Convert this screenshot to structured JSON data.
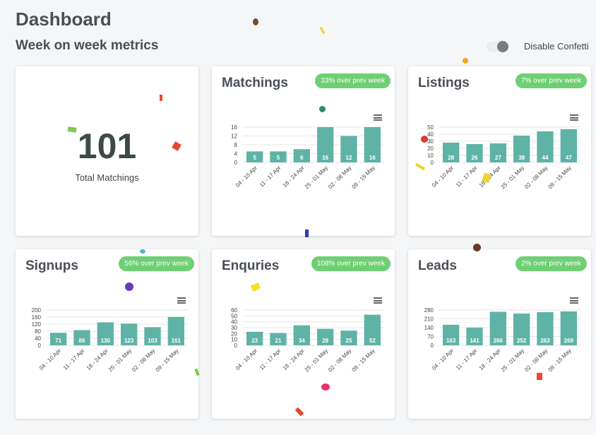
{
  "header": {
    "title": "Dashboard",
    "subtitle": "Week on week metrics"
  },
  "confetti_toggle": {
    "label": "Disable Confetti",
    "enabled": false
  },
  "summary": {
    "value": "101",
    "label": "Total Matchings"
  },
  "colors": {
    "bar": "#5fb3a6",
    "badge": "#6fcf73",
    "grid": "#e6e6e6"
  },
  "chart_data": [
    {
      "type": "bar",
      "title": "Matchings",
      "badge": "33% over prev week",
      "categories": [
        "04 - 10 Apr",
        "11 - 17 Apr",
        "18 - 24 Apr",
        "25 - 01 May",
        "02 - 08 May",
        "09 - 15 May"
      ],
      "values": [
        5,
        5,
        6,
        16,
        12,
        16
      ],
      "yticks": [
        0,
        4,
        8,
        12,
        16
      ],
      "ylim": [
        0,
        16
      ]
    },
    {
      "type": "bar",
      "title": "Listings",
      "badge": "7% over prev week",
      "categories": [
        "04 - 10 Apr",
        "11 - 17 Apr",
        "18 - 24 Apr",
        "25 - 01 May",
        "02 - 08 May",
        "09 - 15 May"
      ],
      "values": [
        28,
        26,
        27,
        38,
        44,
        47
      ],
      "yticks": [
        0,
        10,
        20,
        30,
        40,
        50
      ],
      "ylim": [
        0,
        50
      ]
    },
    {
      "type": "bar",
      "title": "Signups",
      "badge": "56% over prev week",
      "categories": [
        "04 - 10 Apr",
        "11 - 17 Apr",
        "18 - 24 Apr",
        "25 - 01 May",
        "02 - 08 May",
        "09 - 15 May"
      ],
      "values": [
        71,
        86,
        130,
        123,
        103,
        161
      ],
      "yticks": [
        0,
        40,
        80,
        120,
        160,
        200
      ],
      "ylim": [
        0,
        200
      ]
    },
    {
      "type": "bar",
      "title": "Enquries",
      "badge": "108% over prev week",
      "categories": [
        "04 - 10 Apr",
        "11 - 17 Apr",
        "18 - 24 Apr",
        "25 - 01 May",
        "02 - 08 May",
        "09 - 15 May"
      ],
      "values": [
        23,
        21,
        34,
        28,
        25,
        52
      ],
      "yticks": [
        0,
        10,
        20,
        30,
        40,
        50,
        60
      ],
      "ylim": [
        0,
        60
      ]
    },
    {
      "type": "bar",
      "title": "Leads",
      "badge": "2% over prev week",
      "categories": [
        "04 - 10 Apr",
        "11 - 17 Apr",
        "18 - 24 Apr",
        "25 - 01 May",
        "02 - 08 May",
        "09 - 15 May"
      ],
      "values": [
        163,
        141,
        266,
        252,
        263,
        269
      ],
      "yticks": [
        0,
        70,
        140,
        210,
        280
      ],
      "ylim": [
        0,
        280
      ]
    }
  ]
}
